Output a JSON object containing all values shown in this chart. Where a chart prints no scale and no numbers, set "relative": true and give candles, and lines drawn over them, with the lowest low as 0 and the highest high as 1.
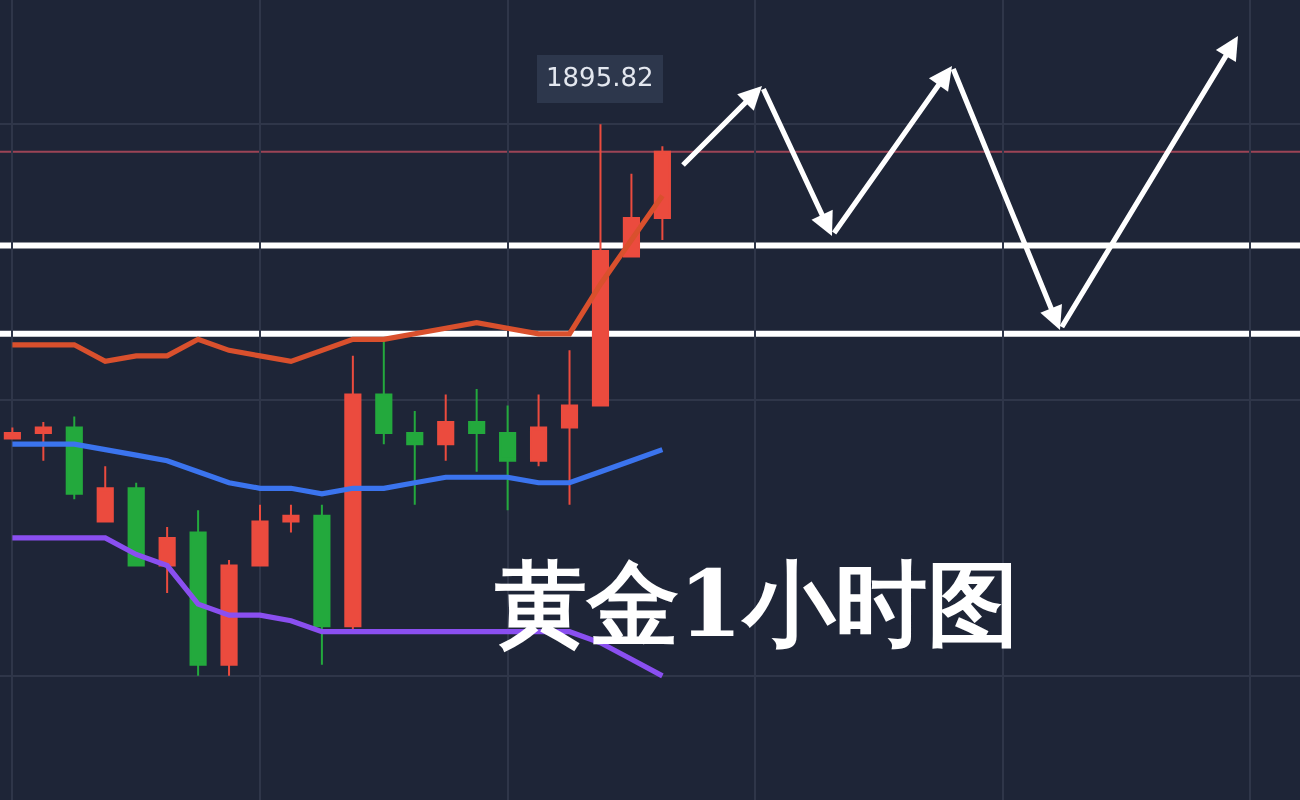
{
  "chart_data": {
    "type": "candlestick",
    "title": "黄金1小时图",
    "relative": true,
    "tick_labels": false,
    "grid": true,
    "categories": [
      null,
      null,
      null,
      null,
      null,
      null,
      null,
      null,
      null,
      null,
      null,
      null,
      null,
      null,
      null,
      null,
      null,
      null,
      null,
      null,
      null,
      null
    ],
    "ohlc": [
      [
        0.43,
        0.45,
        0.43,
        0.44
      ],
      [
        0.44,
        0.46,
        0.39,
        0.45
      ],
      [
        0.45,
        0.47,
        0.32,
        0.33
      ],
      [
        0.28,
        0.38,
        0.28,
        0.34
      ],
      [
        0.34,
        0.35,
        0.2,
        0.2
      ],
      [
        0.2,
        0.27,
        0.15,
        0.25
      ],
      [
        0.26,
        0.3,
        0.0,
        0.02
      ],
      [
        0.02,
        0.21,
        0.0,
        0.2
      ],
      [
        0.2,
        0.31,
        0.2,
        0.28
      ],
      [
        0.28,
        0.31,
        0.26,
        0.29
      ],
      [
        0.29,
        0.31,
        0.02,
        0.09
      ],
      [
        0.09,
        0.58,
        0.08,
        0.51
      ],
      [
        0.51,
        0.61,
        0.42,
        0.44
      ],
      [
        0.44,
        0.48,
        0.31,
        0.42
      ],
      [
        0.42,
        0.51,
        0.39,
        0.46
      ],
      [
        0.46,
        0.52,
        0.37,
        0.44
      ],
      [
        0.44,
        0.49,
        0.3,
        0.39
      ],
      [
        0.39,
        0.51,
        0.38,
        0.45
      ],
      [
        0.45,
        0.59,
        0.31,
        0.49
      ],
      [
        0.49,
        1.0,
        0.49,
        0.77
      ],
      [
        0.76,
        0.91,
        0.76,
        0.83
      ],
      [
        0.83,
        0.96,
        0.79,
        0.95
      ]
    ],
    "colors": [
      "#eb4b3e",
      "#eb4b3e",
      "#23a93d",
      "#eb4b3e",
      "#23a93d",
      "#eb4b3e",
      "#23a93d",
      "#eb4b3e",
      "#eb4b3e",
      "#eb4b3e",
      "#23a93d",
      "#eb4b3e",
      "#23a93d",
      "#23a93d",
      "#eb4b3e",
      "#23a93d",
      "#23a93d",
      "#eb4b3e",
      "#eb4b3e",
      "#eb4b3e",
      "#eb4b3e",
      "#eb4b3e"
    ],
    "annotations": [
      {
        "text": "1895.82",
        "y": 1.0
      }
    ],
    "ref_lines": [
      {
        "axis": "y",
        "value": 0.78,
        "color": "#ffffff"
      },
      {
        "axis": "y",
        "value": 0.62,
        "color": "#ffffff"
      },
      {
        "axis": "y",
        "value": 0.95,
        "color": "#9c4456"
      }
    ],
    "series": [
      {
        "type": "line",
        "color": "#d9502d",
        "values": [
          0.6,
          0.6,
          0.6,
          0.57,
          0.58,
          0.58,
          0.61,
          0.59,
          0.58,
          0.57,
          0.59,
          0.61,
          0.61,
          0.62,
          0.63,
          0.64,
          0.63,
          0.62,
          0.62,
          0.71,
          0.79,
          0.87
        ]
      },
      {
        "type": "line",
        "color": "#3b74ee",
        "values": [
          0.42,
          0.42,
          0.42,
          0.41,
          0.4,
          0.39,
          0.37,
          0.35,
          0.34,
          0.34,
          0.33,
          0.34,
          0.34,
          0.35,
          0.36,
          0.36,
          0.36,
          0.35,
          0.35,
          0.37,
          0.39,
          0.41
        ]
      },
      {
        "type": "line",
        "color": "#8a4ff0",
        "values": [
          0.25,
          0.25,
          0.25,
          0.25,
          0.22,
          0.2,
          0.13,
          0.11,
          0.11,
          0.1,
          0.08,
          0.08,
          0.08,
          0.08,
          0.08,
          0.08,
          0.08,
          0.08,
          0.08,
          0.06,
          0.03,
          0.0
        ]
      }
    ]
  }
}
